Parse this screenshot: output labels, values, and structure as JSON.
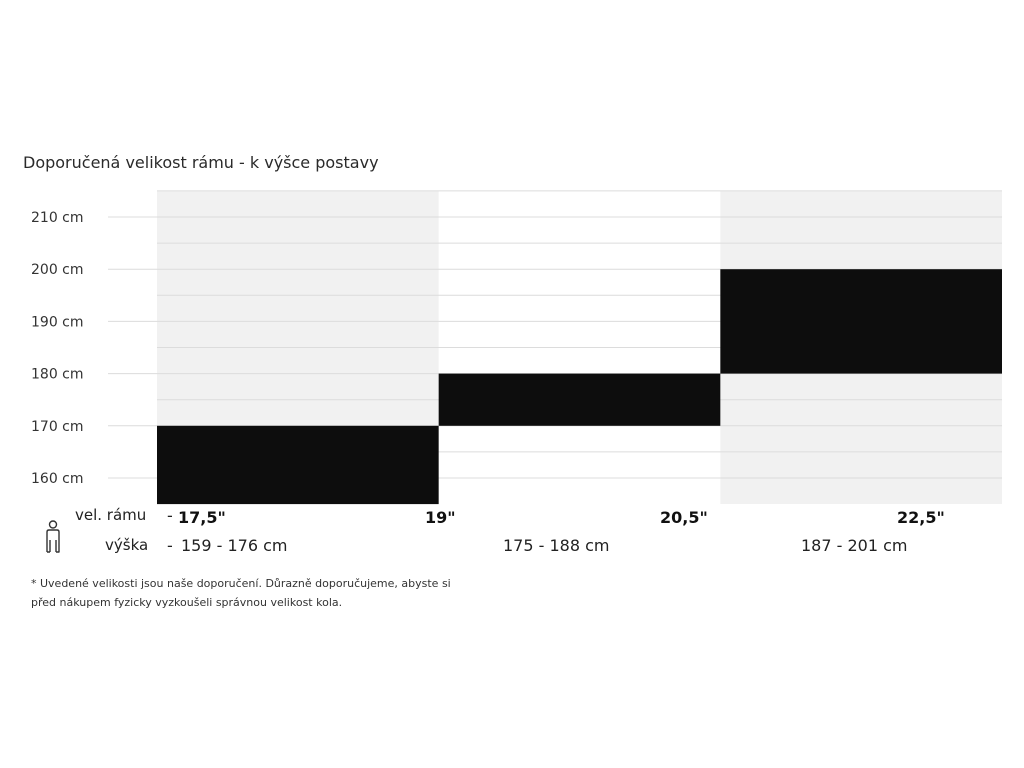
{
  "chart_data": {
    "type": "bar",
    "title": "Doporučená velikost rámu - k výšce postavy",
    "ylim": [
      155,
      215
    ],
    "y_ticks": [
      "160 cm",
      "170 cm",
      "180 cm",
      "190 cm",
      "200 cm",
      "210 cm"
    ],
    "y_tick_values": [
      160,
      170,
      180,
      190,
      200,
      210
    ],
    "grid": true,
    "categories": [
      "17,5\"",
      "19\"",
      "20,5\"",
      "22,5\""
    ],
    "height_ranges": [
      "159 - 176 cm",
      "175 - 188 cm",
      "187 - 201 cm"
    ],
    "bars": [
      {
        "x_start": 0,
        "x_end": 1,
        "y_low": 155,
        "y_high": 170
      },
      {
        "x_start": 1,
        "x_end": 2,
        "y_low": 170,
        "y_high": 180
      },
      {
        "x_start": 2,
        "x_end": 3,
        "y_low": 180,
        "y_high": 200
      }
    ],
    "shaded_columns": [
      0,
      2
    ],
    "colors": {
      "bar": "#0d0d0d",
      "shade": "#f1f1f1",
      "grid": "#dcdcdc"
    }
  },
  "legend": {
    "size_label": "vel. rámu",
    "height_label": "výška",
    "icon": "person-icon"
  },
  "note": {
    "line1": "* Uvedené velikosti jsou naše doporučení. Důrazně doporučujeme, abyste si",
    "line2": "před nákupem fyzicky vyzkoušeli správnou velikost kola."
  }
}
